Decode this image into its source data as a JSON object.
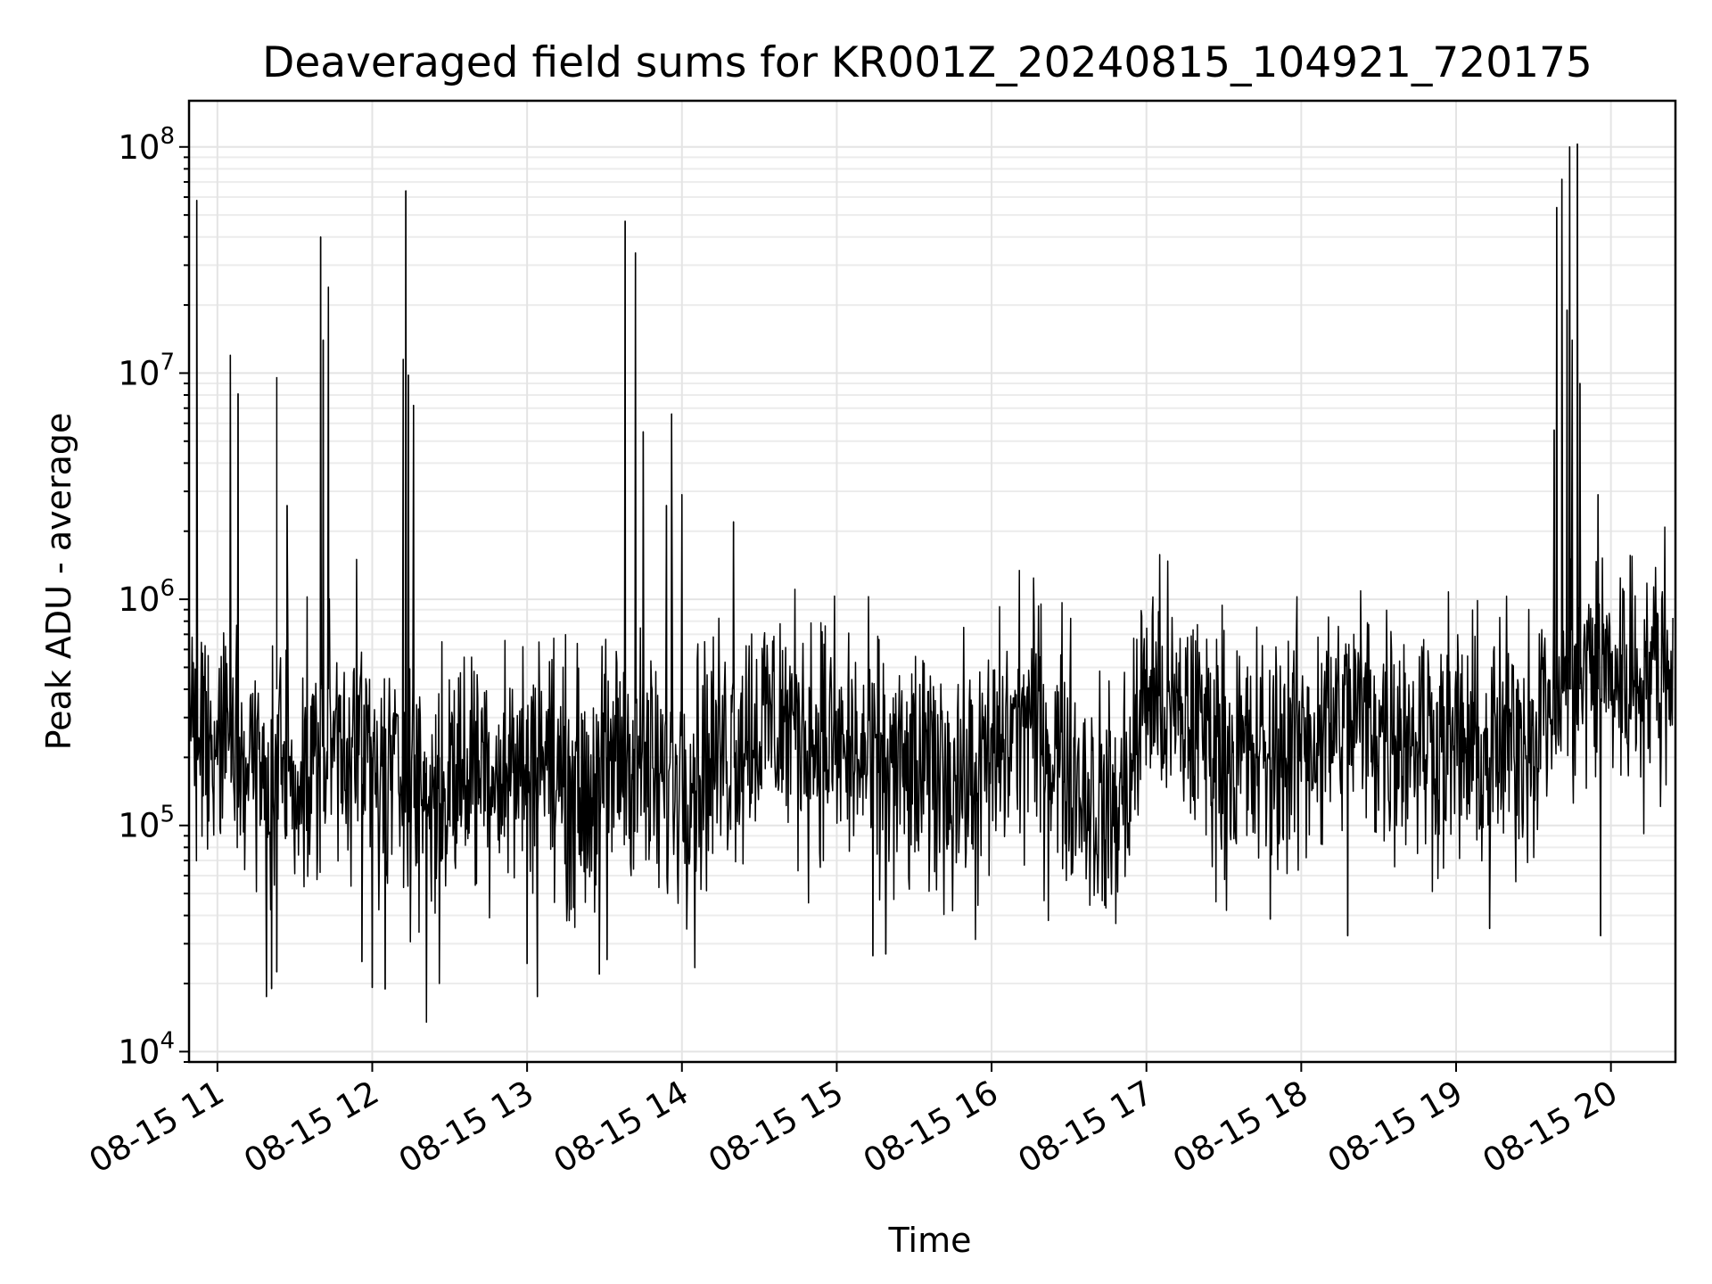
{
  "chart_data": {
    "type": "line",
    "title": "Deaveraged field sums for KR001Z_20240815_104921_720175",
    "xlabel": "Time",
    "ylabel": "Peak ADU - average",
    "x_scale": "time",
    "y_scale": "log",
    "xlim": [
      "2024-08-15 10:49",
      "2024-08-15 20:25"
    ],
    "ylim": [
      9000,
      160000000
    ],
    "x_ticks": [
      "08-15 11",
      "08-15 12",
      "08-15 13",
      "08-15 14",
      "08-15 15",
      "08-15 16",
      "08-15 17",
      "08-15 18",
      "08-15 19",
      "08-15 20"
    ],
    "y_ticks": [
      {
        "base": "10",
        "exp": "4",
        "value": 10000
      },
      {
        "base": "10",
        "exp": "5",
        "value": 100000
      },
      {
        "base": "10",
        "exp": "6",
        "value": 1000000
      },
      {
        "base": "10",
        "exp": "7",
        "value": 10000000
      },
      {
        "base": "10",
        "exp": "8",
        "value": 100000000
      }
    ],
    "grid": true,
    "line_color": "#000000",
    "series": [
      {
        "x": [
          "08-15 10:49",
          "08-15 10:54",
          "08-15 11:00",
          "08-15 11:06",
          "08-15 11:12",
          "08-15 11:18",
          "08-15 11:24",
          "08-15 11:30",
          "08-15 11:36",
          "08-15 11:42",
          "08-15 11:48",
          "08-15 11:54",
          "08-15 12:00",
          "08-15 12:06",
          "08-15 12:12",
          "08-15 12:18",
          "08-15 12:24",
          "08-15 12:30",
          "08-15 12:36",
          "08-15 12:42",
          "08-15 12:48",
          "08-15 12:54",
          "08-15 13:00",
          "08-15 13:06",
          "08-15 13:12",
          "08-15 13:18",
          "08-15 13:24",
          "08-15 13:30",
          "08-15 13:36",
          "08-15 13:42",
          "08-15 13:48",
          "08-15 13:54",
          "08-15 14:00",
          "08-15 14:06",
          "08-15 14:12",
          "08-15 14:18",
          "08-15 14:24",
          "08-15 14:30",
          "08-15 14:36",
          "08-15 14:42",
          "08-15 14:48",
          "08-15 14:54",
          "08-15 15:00",
          "08-15 15:06",
          "08-15 15:12",
          "08-15 15:18",
          "08-15 15:24",
          "08-15 15:30",
          "08-15 15:36",
          "08-15 15:42",
          "08-15 15:48",
          "08-15 15:54",
          "08-15 16:00",
          "08-15 16:06",
          "08-15 16:12",
          "08-15 16:18",
          "08-15 16:24",
          "08-15 16:30",
          "08-15 16:36",
          "08-15 16:42",
          "08-15 16:48",
          "08-15 16:54",
          "08-15 17:00",
          "08-15 17:06",
          "08-15 17:12",
          "08-15 17:18",
          "08-15 17:24",
          "08-15 17:30",
          "08-15 17:36",
          "08-15 17:42",
          "08-15 17:48",
          "08-15 17:54",
          "08-15 18:00",
          "08-15 18:06",
          "08-15 18:12",
          "08-15 18:18",
          "08-15 18:24",
          "08-15 18:30",
          "08-15 18:36",
          "08-15 18:42",
          "08-15 18:48",
          "08-15 18:54",
          "08-15 19:00",
          "08-15 19:06",
          "08-15 19:12",
          "08-15 19:18",
          "08-15 19:24",
          "08-15 19:30",
          "08-15 19:36",
          "08-15 19:42",
          "08-15 19:48",
          "08-15 19:54",
          "08-15 20:00",
          "08-15 20:06",
          "08-15 20:12",
          "08-15 20:18",
          "08-15 20:24"
        ],
        "y": [
          300000,
          250000,
          210000,
          230000,
          190000,
          150000,
          200000,
          180000,
          160000,
          220000,
          260000,
          240000,
          180000,
          150000,
          170000,
          140000,
          130000,
          160000,
          180000,
          200000,
          190000,
          170000,
          200000,
          220000,
          160000,
          150000,
          140000,
          180000,
          210000,
          200000,
          160000,
          140000,
          180000,
          190000,
          200000,
          230000,
          260000,
          280000,
          300000,
          280000,
          260000,
          250000,
          220000,
          200000,
          190000,
          180000,
          170000,
          160000,
          170000,
          180000,
          160000,
          150000,
          190000,
          240000,
          300000,
          280000,
          220000,
          190000,
          150000,
          120000,
          110000,
          180000,
          420000,
          350000,
          280000,
          300000,
          250000,
          220000,
          200000,
          190000,
          210000,
          220000,
          230000,
          260000,
          280000,
          300000,
          310000,
          280000,
          270000,
          260000,
          250000,
          240000,
          230000,
          210000,
          200000,
          220000,
          250000,
          280000,
          350000,
          420000,
          450000,
          500000,
          480000,
          460000,
          470000,
          500000,
          520000
        ]
      }
    ],
    "spikes": [
      {
        "x": "08-15 10:52",
        "y": 58000000
      },
      {
        "x": "08-15 11:05",
        "y": 12000000
      },
      {
        "x": "08-15 11:08",
        "y": 8100000
      },
      {
        "x": "08-15 11:23",
        "y": 9600000
      },
      {
        "x": "08-15 11:27",
        "y": 2600000
      },
      {
        "x": "08-15 11:40",
        "y": 40000000
      },
      {
        "x": "08-15 11:41",
        "y": 14000000
      },
      {
        "x": "08-15 11:43",
        "y": 24000000
      },
      {
        "x": "08-15 12:12",
        "y": 11500000
      },
      {
        "x": "08-15 12:13",
        "y": 64000000
      },
      {
        "x": "08-15 12:14",
        "y": 9800000
      },
      {
        "x": "08-15 12:16",
        "y": 7200000
      },
      {
        "x": "08-15 13:38",
        "y": 47000000
      },
      {
        "x": "08-15 13:42",
        "y": 34000000
      },
      {
        "x": "08-15 13:45",
        "y": 5500000
      },
      {
        "x": "08-15 13:54",
        "y": 2600000
      },
      {
        "x": "08-15 13:56",
        "y": 6600000
      },
      {
        "x": "08-15 14:00",
        "y": 2900000
      },
      {
        "x": "08-15 14:20",
        "y": 2200000
      },
      {
        "x": "08-15 19:38",
        "y": 5600000
      },
      {
        "x": "08-15 19:39",
        "y": 54000000
      },
      {
        "x": "08-15 19:41",
        "y": 72000000
      },
      {
        "x": "08-15 19:43",
        "y": 19000000
      },
      {
        "x": "08-15 19:44",
        "y": 100000000
      },
      {
        "x": "08-15 19:45",
        "y": 14000000
      },
      {
        "x": "08-15 19:47",
        "y": 103000000
      },
      {
        "x": "08-15 19:48",
        "y": 9000000
      },
      {
        "x": "08-15 19:55",
        "y": 2900000
      }
    ],
    "dips": [
      {
        "x": "08-15 11:19",
        "y": 17500.0
      },
      {
        "x": "08-15 11:21",
        "y": 19000
      },
      {
        "x": "08-15 11:23",
        "y": 22500
      },
      {
        "x": "08-15 11:56",
        "y": 25000
      },
      {
        "x": "08-15 12:00",
        "y": 19200
      },
      {
        "x": "08-15 12:05",
        "y": 18900
      },
      {
        "x": "08-15 12:21",
        "y": 13500
      },
      {
        "x": "08-15 12:26",
        "y": 20000
      },
      {
        "x": "08-15 13:00",
        "y": 24500
      },
      {
        "x": "08-15 13:04",
        "y": 17500
      },
      {
        "x": "08-15 13:28",
        "y": 22000
      },
      {
        "x": "08-15 13:31",
        "y": 25500
      },
      {
        "x": "08-15 14:05",
        "y": 23500
      },
      {
        "x": "08-15 15:14",
        "y": 26500
      },
      {
        "x": "08-15 15:19",
        "y": 27000
      },
      {
        "x": "08-15 16:22",
        "y": 38000
      },
      {
        "x": "08-15 17:48",
        "y": 38500
      },
      {
        "x": "08-15 18:18",
        "y": 32500
      },
      {
        "x": "08-15 19:13",
        "y": 35000
      },
      {
        "x": "08-15 19:56",
        "y": 32500
      }
    ]
  }
}
